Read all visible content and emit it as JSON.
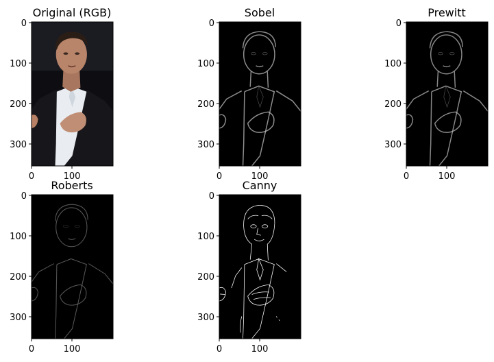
{
  "figure": {
    "panels": [
      {
        "id": "original",
        "title": "Original (RGB)",
        "kind": "photo",
        "xticks": [
          "0",
          "100"
        ],
        "yticks": [
          "0",
          "100",
          "200",
          "300"
        ]
      },
      {
        "id": "sobel",
        "title": "Sobel",
        "kind": "gradient",
        "xticks": [
          "0",
          "100"
        ],
        "yticks": [
          "0",
          "100",
          "200",
          "300"
        ]
      },
      {
        "id": "prewitt",
        "title": "Prewitt",
        "kind": "gradient",
        "xticks": [
          "0",
          "100"
        ],
        "yticks": [
          "0",
          "100",
          "200",
          "300"
        ]
      },
      {
        "id": "roberts",
        "title": "Roberts",
        "kind": "gradient-faint",
        "xticks": [
          "0",
          "100"
        ],
        "yticks": [
          "0",
          "100",
          "200",
          "300"
        ]
      },
      {
        "id": "canny",
        "title": "Canny",
        "kind": "binary-edges",
        "xticks": [
          "0",
          "100"
        ],
        "yticks": [
          "0",
          "100",
          "200",
          "300"
        ]
      }
    ]
  },
  "colors": {
    "background": "#000000",
    "suit": "#17171b",
    "shirt": "#e9edf2",
    "skin": "#b8846a",
    "hair": "#2a1d16"
  }
}
